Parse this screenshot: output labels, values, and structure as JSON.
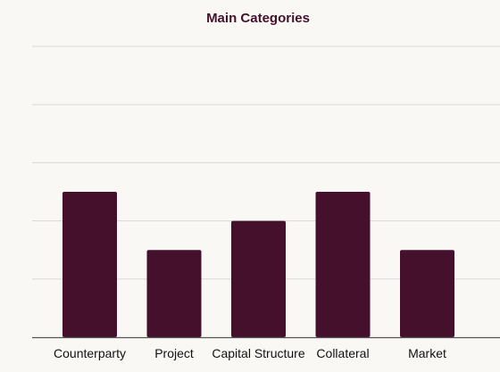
{
  "chart_data": {
    "type": "bar",
    "title": "Main Categories",
    "xlabel": "",
    "ylabel": "",
    "categories": [
      "Counterparty",
      "Project",
      "Capital Structure",
      "Collateral",
      "Market"
    ],
    "values": [
      5,
      3,
      4,
      5,
      3
    ],
    "ylim": [
      0,
      10
    ],
    "grid": true,
    "y_tick_labels_visible": false,
    "legend": "none",
    "colors": {
      "bar": "#45102c",
      "title": "#45102c",
      "grid": "#d9d9d9",
      "axis": "#555555",
      "background": "#faf8f5"
    }
  }
}
